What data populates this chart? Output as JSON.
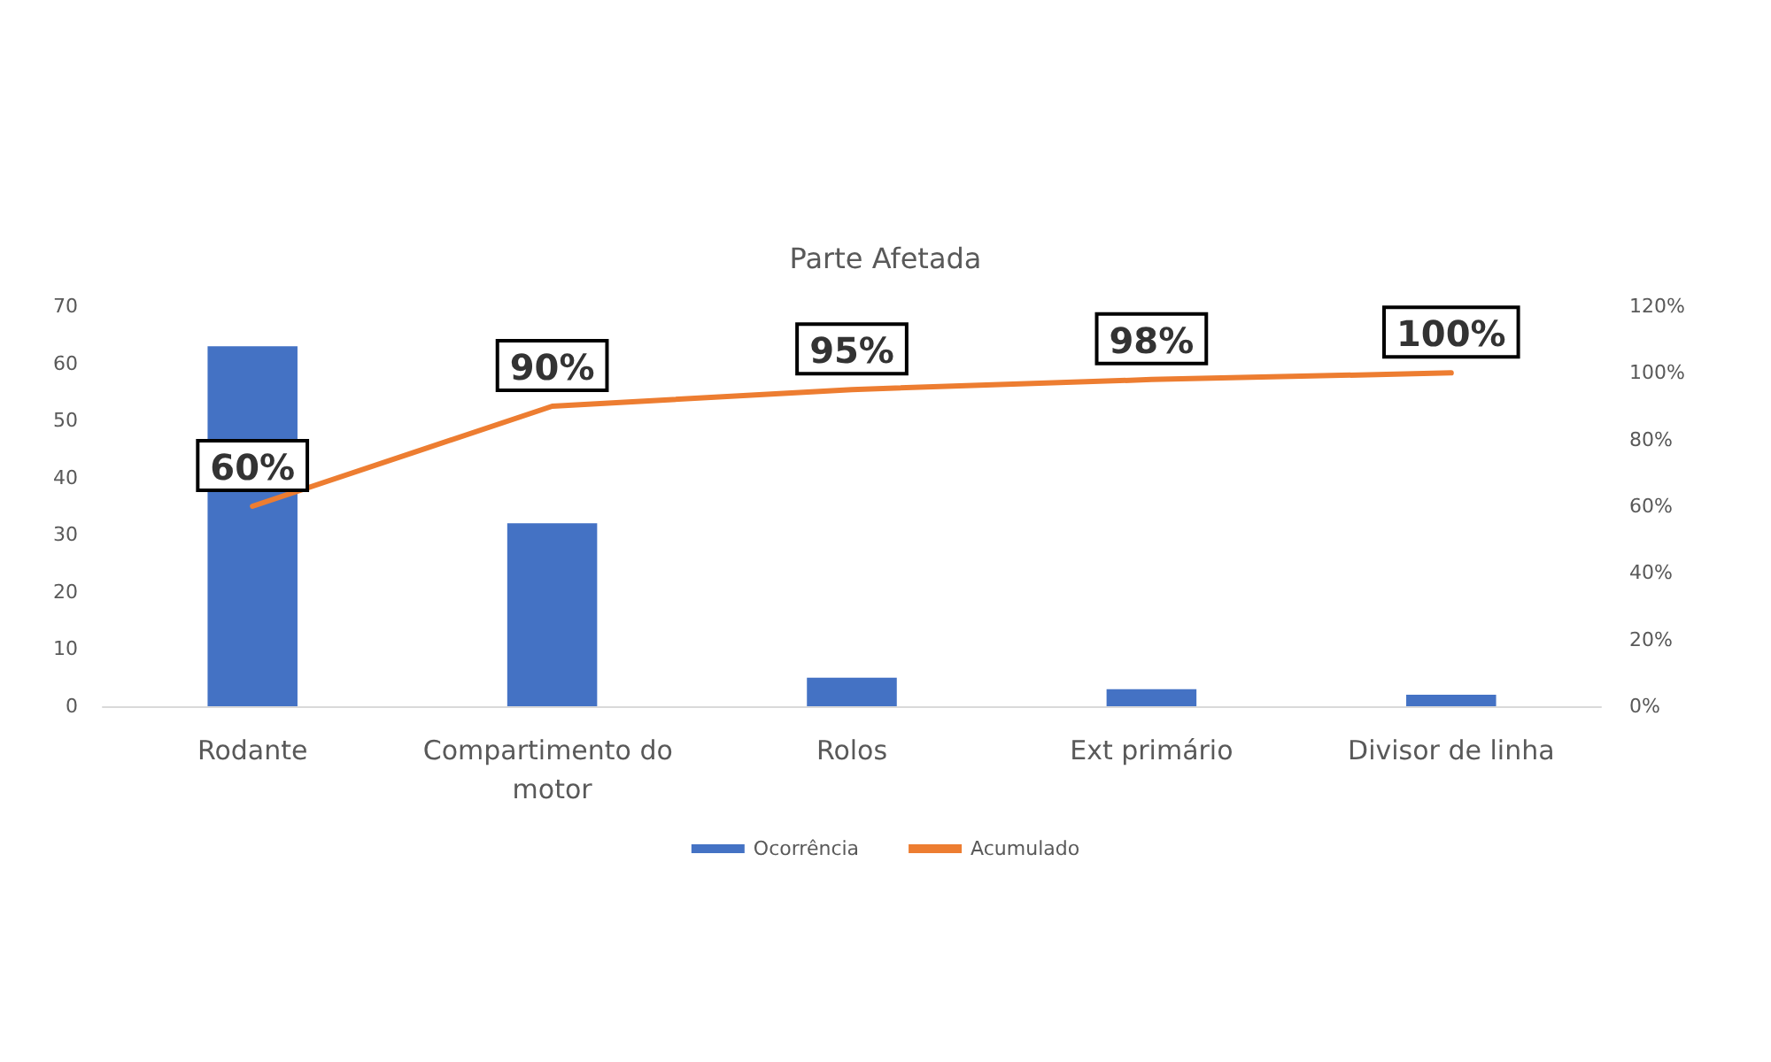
{
  "chart_data": {
    "type": "bar",
    "title": "Parte Afetada",
    "categories": [
      "Rodante",
      "Compartimento do motor",
      "Rolos",
      "Ext primário",
      "Divisor de linha"
    ],
    "series": [
      {
        "name": "Ocorrência",
        "color": "#4472c4",
        "values": [
          63,
          32,
          5,
          3,
          2
        ]
      },
      {
        "name": "Acumulado",
        "type": "line",
        "axis": "y2",
        "color": "#ed7d31",
        "values": [
          60,
          90,
          95,
          98,
          100
        ],
        "value_labels": [
          "60%",
          "90%",
          "95%",
          "98%",
          "100%"
        ]
      }
    ],
    "ylim": [
      0,
      70
    ],
    "yticks": [
      0,
      10,
      20,
      30,
      40,
      50,
      60,
      70
    ],
    "y2lim": [
      0,
      120
    ],
    "y2ticks": [
      {
        "value": 0,
        "label": "0%"
      },
      {
        "value": 20,
        "label": "20%"
      },
      {
        "value": 40,
        "label": "40%"
      },
      {
        "value": 60,
        "label": "60%"
      },
      {
        "value": 80,
        "label": "80%"
      },
      {
        "value": 100,
        "label": "100%"
      },
      {
        "value": 120,
        "label": "120%"
      }
    ],
    "grid": false,
    "legend": "bottom",
    "marker": "none",
    "line_style": "solid"
  }
}
